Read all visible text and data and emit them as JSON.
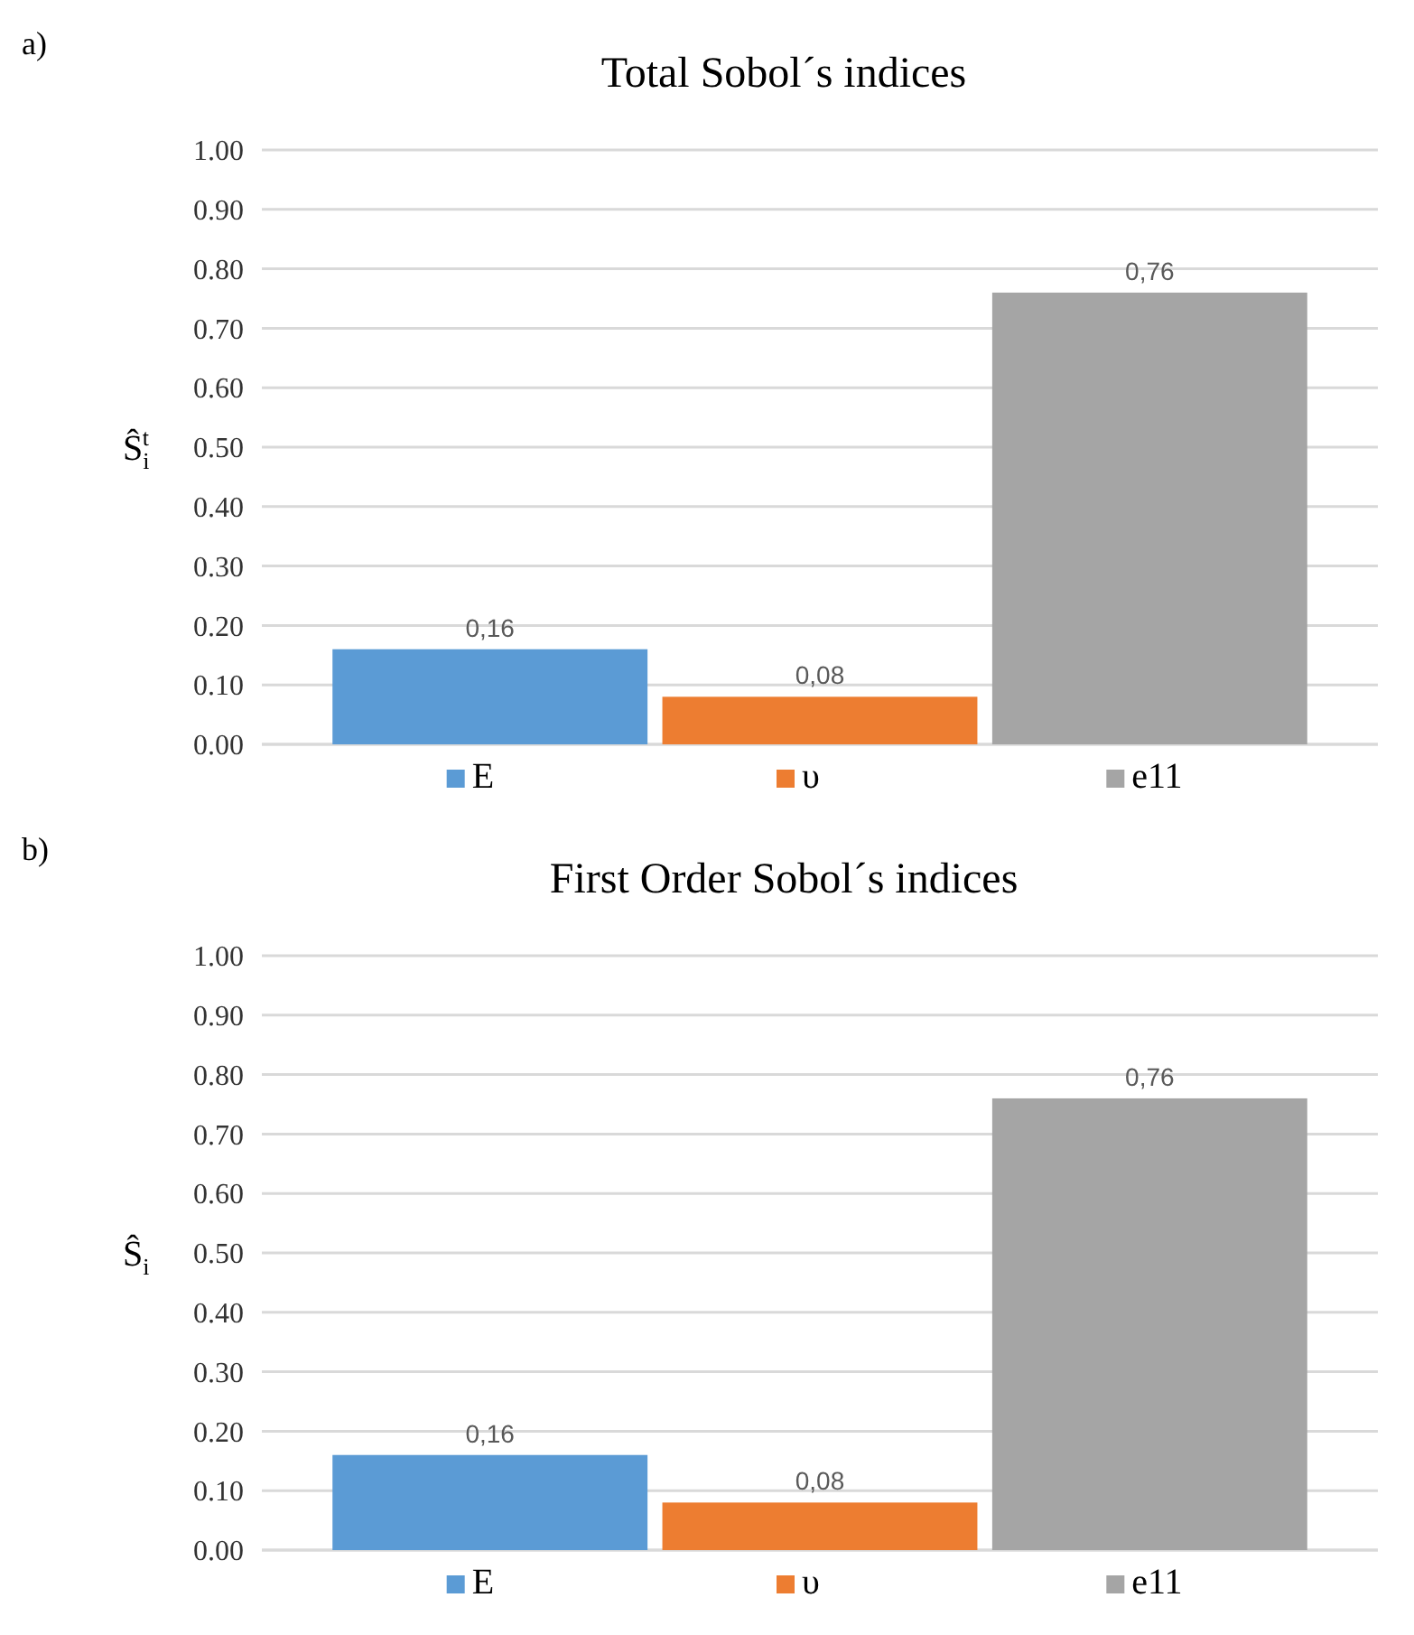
{
  "chart_data": [
    {
      "type": "bar",
      "title": "Total Sobol´s indices",
      "ylabel": "Ŝ$_{i}$$^{t}$",
      "annotations": [
        "a)"
      ],
      "categories": [
        null
      ],
      "series": [
        {
          "name": "E",
          "color": "#5b9bd5",
          "values": [
            0.16
          ],
          "value_labels": [
            "0,16"
          ]
        },
        {
          "name": "υ",
          "color": "#ed7d31",
          "values": [
            0.08
          ],
          "value_labels": [
            "0,08"
          ]
        },
        {
          "name": "e11",
          "color": "#a5a5a5",
          "values": [
            0.76
          ],
          "value_labels": [
            "0,76"
          ]
        }
      ],
      "ylim": [
        0,
        1
      ],
      "yticks": [
        {
          "value": 0,
          "label": "0.00"
        },
        {
          "value": 0.1,
          "label": "0.10"
        },
        {
          "value": 0.2,
          "label": "0.20"
        },
        {
          "value": 0.3,
          "label": "0.30"
        },
        {
          "value": 0.4,
          "label": "0.40"
        },
        {
          "value": 0.5,
          "label": "0.50"
        },
        {
          "value": 0.6,
          "label": "0.60"
        },
        {
          "value": 0.7,
          "label": "0.70"
        },
        {
          "value": 0.8,
          "label": "0.80"
        },
        {
          "value": 0.9,
          "label": "0.90"
        },
        {
          "value": 1,
          "label": "1.00"
        }
      ],
      "grid": "y",
      "legend": "bottom"
    },
    {
      "type": "bar",
      "title": "First Order Sobol´s indices",
      "ylabel": "Ŝ$_{i}$",
      "annotations": [
        "b)"
      ],
      "categories": [
        null
      ],
      "series": [
        {
          "name": "E",
          "color": "#5b9bd5",
          "values": [
            0.16
          ],
          "value_labels": [
            "0,16"
          ]
        },
        {
          "name": "υ",
          "color": "#ed7d31",
          "values": [
            0.08
          ],
          "value_labels": [
            "0,08"
          ]
        },
        {
          "name": "e11",
          "color": "#a5a5a5",
          "values": [
            0.76
          ],
          "value_labels": [
            "0,76"
          ]
        }
      ],
      "ylim": [
        0,
        1
      ],
      "yticks": [
        {
          "value": 0,
          "label": "0.00"
        },
        {
          "value": 0.1,
          "label": "0.10"
        },
        {
          "value": 0.2,
          "label": "0.20"
        },
        {
          "value": 0.3,
          "label": "0.30"
        },
        {
          "value": 0.4,
          "label": "0.40"
        },
        {
          "value": 0.5,
          "label": "0.50"
        },
        {
          "value": 0.6,
          "label": "0.60"
        },
        {
          "value": 0.7,
          "label": "0.70"
        },
        {
          "value": 0.8,
          "label": "0.80"
        },
        {
          "value": 0.9,
          "label": "0.90"
        },
        {
          "value": 1,
          "label": "1.00"
        }
      ],
      "grid": "y",
      "legend": "bottom"
    }
  ]
}
